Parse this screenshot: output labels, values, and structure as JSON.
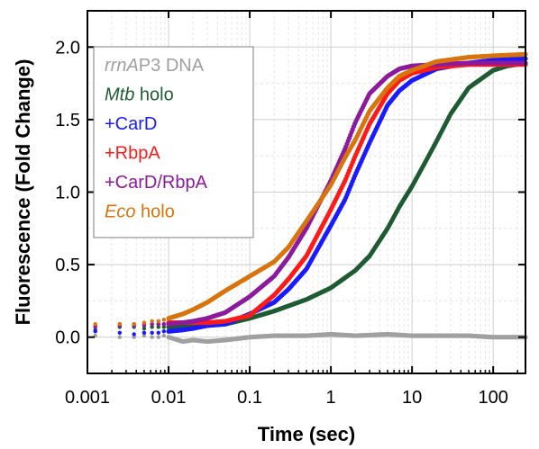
{
  "chart_data": {
    "type": "scatter",
    "title": "",
    "xlabel": "Time (sec)",
    "ylabel": "Fluorescence (Fold Change)",
    "x_scale": "log",
    "xlim": [
      0.001,
      250
    ],
    "ylim": [
      -0.25,
      2.25
    ],
    "grid": true,
    "legend_position": "top-left",
    "x_ticks": [
      {
        "value": 0.001,
        "label": "0.001"
      },
      {
        "value": 0.01,
        "label": "0.01"
      },
      {
        "value": 0.1,
        "label": "0.1"
      },
      {
        "value": 1,
        "label": "1"
      },
      {
        "value": 10,
        "label": "10"
      },
      {
        "value": 100,
        "label": "100"
      }
    ],
    "y_ticks": [
      {
        "value": 0.0,
        "label": "0.0"
      },
      {
        "value": 0.5,
        "label": "0.5"
      },
      {
        "value": 1.0,
        "label": "1.0"
      },
      {
        "value": 1.5,
        "label": "1.5"
      },
      {
        "value": 2.0,
        "label": "2.0"
      }
    ],
    "series": [
      {
        "label_parts": [
          {
            "text": "rrnA",
            "italic": true
          },
          {
            "text": "P3 DNA",
            "italic": false
          }
        ],
        "color": "#a0a0a0",
        "x": [
          0.00125,
          0.0025,
          0.00375,
          0.005,
          0.00625,
          0.0075,
          0.00875,
          0.01,
          0.015,
          0.02,
          0.03,
          0.05,
          0.1,
          0.2,
          0.5,
          1,
          2,
          5,
          10,
          20,
          50,
          100,
          250
        ],
        "y": [
          0.01,
          0.0,
          0.0,
          0.01,
          0.0,
          0.0,
          0.01,
          0.0,
          -0.03,
          -0.02,
          -0.03,
          -0.02,
          0.0,
          0.01,
          0.01,
          0.02,
          0.01,
          0.02,
          0.01,
          0.01,
          0.01,
          0.0,
          0.0
        ]
      },
      {
        "label_parts": [
          {
            "text": "Mtb",
            "italic": true
          },
          {
            "text": " holo",
            "italic": false
          }
        ],
        "color": "#1e5a32",
        "x": [
          0.00125,
          0.0025,
          0.00375,
          0.005,
          0.00625,
          0.0075,
          0.00875,
          0.01,
          0.015,
          0.02,
          0.03,
          0.05,
          0.1,
          0.2,
          0.5,
          1,
          2,
          3,
          5,
          7,
          10,
          15,
          20,
          30,
          50,
          100,
          150,
          250
        ],
        "y": [
          0.05,
          0.07,
          0.07,
          0.06,
          0.07,
          0.07,
          0.07,
          0.07,
          0.07,
          0.07,
          0.08,
          0.09,
          0.13,
          0.18,
          0.26,
          0.34,
          0.46,
          0.56,
          0.75,
          0.9,
          1.04,
          1.22,
          1.35,
          1.54,
          1.72,
          1.84,
          1.87,
          1.89
        ]
      },
      {
        "label_parts": [
          {
            "text": "+CarD",
            "italic": false
          }
        ],
        "color": "#1a1aff",
        "x": [
          0.00125,
          0.0025,
          0.00375,
          0.005,
          0.00625,
          0.0075,
          0.00875,
          0.01,
          0.015,
          0.02,
          0.03,
          0.05,
          0.1,
          0.2,
          0.3,
          0.5,
          1,
          1.5,
          2,
          3,
          5,
          7,
          10,
          20,
          50,
          100,
          250
        ],
        "y": [
          0.04,
          0.03,
          0.02,
          0.03,
          0.03,
          0.03,
          0.04,
          0.04,
          0.05,
          0.06,
          0.08,
          0.09,
          0.16,
          0.24,
          0.33,
          0.47,
          0.77,
          0.95,
          1.12,
          1.34,
          1.6,
          1.7,
          1.77,
          1.85,
          1.89,
          1.91,
          1.92
        ]
      },
      {
        "label_parts": [
          {
            "text": "+RbpA",
            "italic": false
          }
        ],
        "color": "#ff1a1a",
        "x": [
          0.00125,
          0.0025,
          0.00375,
          0.005,
          0.00625,
          0.0075,
          0.00875,
          0.01,
          0.015,
          0.02,
          0.03,
          0.05,
          0.1,
          0.2,
          0.3,
          0.5,
          1,
          1.5,
          2,
          3,
          5,
          7,
          10,
          20,
          50,
          100,
          250
        ],
        "y": [
          0.08,
          0.09,
          0.09,
          0.09,
          0.09,
          0.09,
          0.09,
          0.1,
          0.1,
          0.1,
          0.1,
          0.11,
          0.15,
          0.29,
          0.4,
          0.56,
          0.88,
          1.08,
          1.25,
          1.47,
          1.68,
          1.77,
          1.82,
          1.86,
          1.88,
          1.88,
          1.88
        ]
      },
      {
        "label_parts": [
          {
            "text": "+CarD/RbpA",
            "italic": false
          }
        ],
        "color": "#8c1a9c",
        "x": [
          0.00125,
          0.0025,
          0.00375,
          0.005,
          0.00625,
          0.0075,
          0.00875,
          0.01,
          0.015,
          0.02,
          0.03,
          0.05,
          0.1,
          0.2,
          0.3,
          0.5,
          1,
          1.5,
          2,
          3,
          5,
          7,
          10,
          20,
          50,
          100,
          250
        ],
        "y": [
          0.07,
          0.08,
          0.08,
          0.08,
          0.09,
          0.09,
          0.09,
          0.09,
          0.1,
          0.11,
          0.13,
          0.17,
          0.28,
          0.42,
          0.55,
          0.75,
          1.08,
          1.3,
          1.48,
          1.68,
          1.8,
          1.85,
          1.87,
          1.88,
          1.89,
          1.89,
          1.89
        ]
      },
      {
        "label_parts": [
          {
            "text": "Eco",
            "italic": true
          },
          {
            "text": " holo",
            "italic": false
          }
        ],
        "color": "#d9730d",
        "x": [
          0.00125,
          0.0025,
          0.00375,
          0.005,
          0.00625,
          0.0075,
          0.00875,
          0.01,
          0.015,
          0.02,
          0.03,
          0.05,
          0.1,
          0.2,
          0.3,
          0.5,
          1,
          1.5,
          2,
          3,
          5,
          7,
          10,
          20,
          50,
          100,
          250
        ],
        "y": [
          0.09,
          0.09,
          0.09,
          0.1,
          0.11,
          0.11,
          0.12,
          0.13,
          0.16,
          0.19,
          0.24,
          0.32,
          0.42,
          0.52,
          0.62,
          0.8,
          1.05,
          1.24,
          1.36,
          1.56,
          1.72,
          1.8,
          1.84,
          1.9,
          1.93,
          1.94,
          1.95
        ]
      }
    ]
  }
}
